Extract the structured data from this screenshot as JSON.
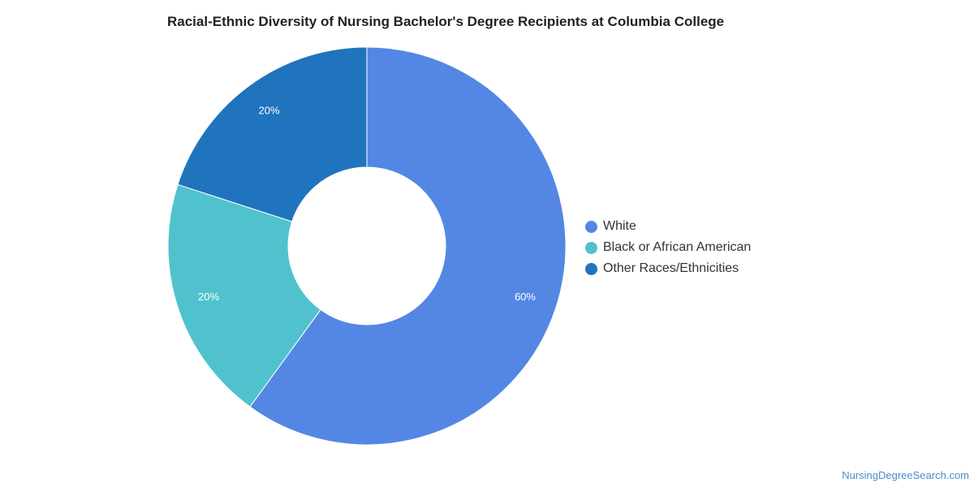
{
  "chart_data": {
    "type": "pie",
    "title": "Racial-Ethnic Diversity of Nursing Bachelor's Degree Recipients at Columbia College",
    "categories": [
      "White",
      "Black or African American",
      "Other Races/Ethnicities"
    ],
    "values": [
      60,
      20,
      20
    ],
    "data_labels": [
      "60%",
      "20%",
      "20%"
    ],
    "colors": [
      "#5387e3",
      "#50c2ce",
      "#1f74bd"
    ],
    "donut": true,
    "legend_position": "right"
  },
  "footer": {
    "source": "NursingDegreeSearch.com"
  }
}
